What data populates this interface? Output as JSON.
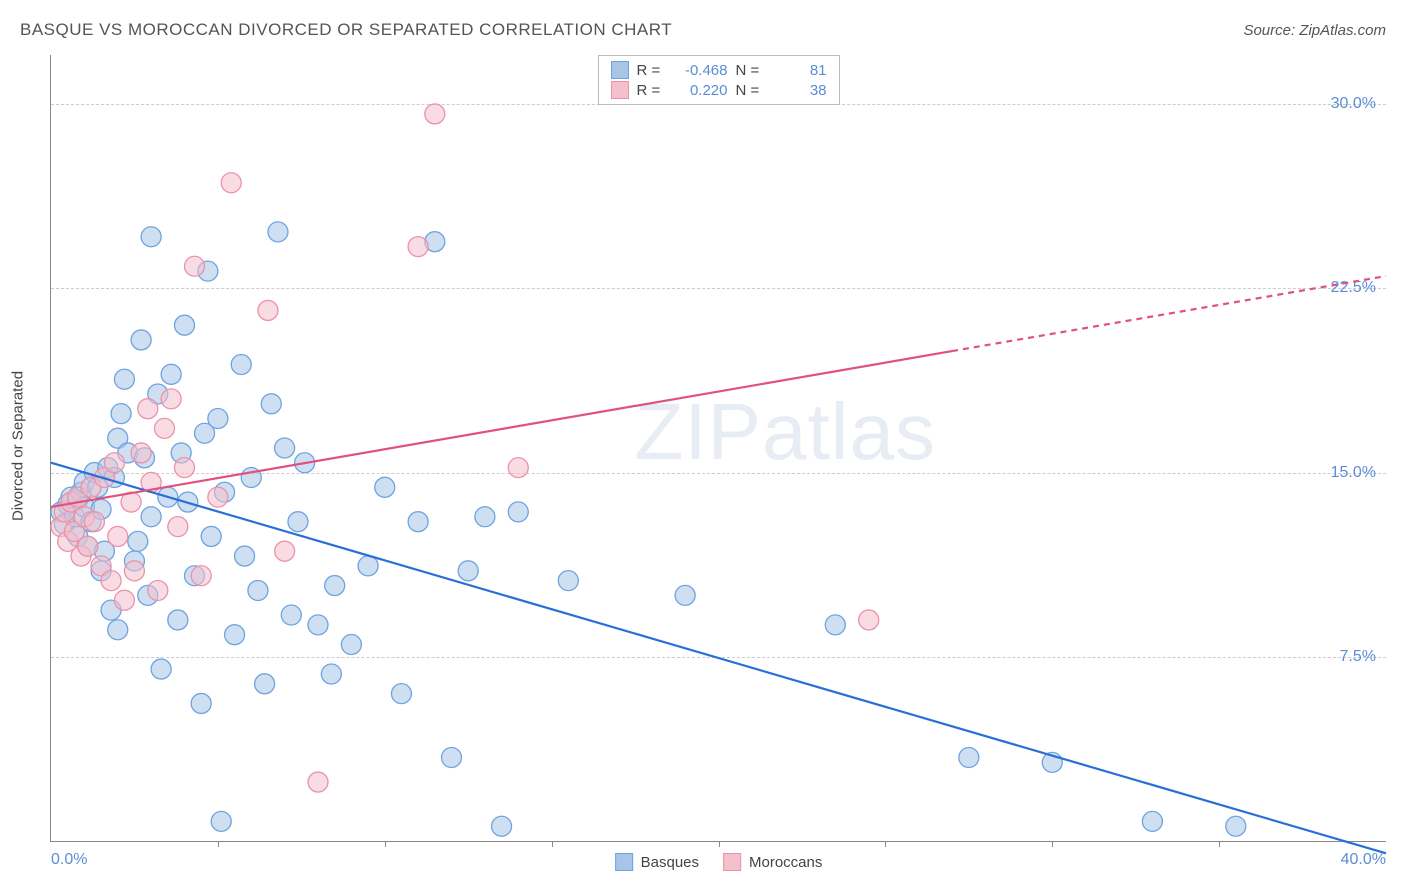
{
  "title": "BASQUE VS MOROCCAN DIVORCED OR SEPARATED CORRELATION CHART",
  "source_label": "Source: ZipAtlas.com",
  "ylabel": "Divorced or Separated",
  "watermark": {
    "part1": "ZIP",
    "part2": "atlas"
  },
  "chart": {
    "type": "scatter",
    "background_color": "#ffffff",
    "grid_color": "#cccccc",
    "axis_color": "#888888",
    "tick_label_color": "#5b8dd6",
    "xlim": [
      0,
      40
    ],
    "ylim": [
      0,
      32
    ],
    "xticks_major": [
      0,
      40
    ],
    "xticks_minor": [
      5,
      10,
      15,
      20,
      25,
      30,
      35
    ],
    "yticks": [
      7.5,
      15.0,
      22.5,
      30.0
    ],
    "xtick_labels": [
      "0.0%",
      "40.0%"
    ],
    "ytick_labels": [
      "7.5%",
      "15.0%",
      "22.5%",
      "30.0%"
    ],
    "marker_radius": 10,
    "marker_opacity": 0.55,
    "line_width": 2.2,
    "series": [
      {
        "name": "Basques",
        "color_fill": "#a8c5e8",
        "color_stroke": "#6da3e0",
        "line_color": "#2a6fd6",
        "R": "-0.468",
        "N": "81",
        "trend": {
          "x1": 0,
          "y1": 15.4,
          "x2": 40,
          "y2": -0.5,
          "solid_until_x": 40
        },
        "points": [
          [
            0.3,
            13.4
          ],
          [
            0.4,
            12.9
          ],
          [
            0.5,
            13.7
          ],
          [
            0.6,
            14.0
          ],
          [
            0.7,
            13.2
          ],
          [
            0.8,
            13.9
          ],
          [
            0.8,
            12.4
          ],
          [
            0.9,
            14.2
          ],
          [
            1.0,
            13.6
          ],
          [
            1.0,
            14.6
          ],
          [
            1.1,
            12.0
          ],
          [
            1.2,
            13.0
          ],
          [
            1.3,
            15.0
          ],
          [
            1.4,
            14.4
          ],
          [
            1.5,
            11.0
          ],
          [
            1.5,
            13.5
          ],
          [
            1.6,
            11.8
          ],
          [
            1.7,
            15.2
          ],
          [
            1.8,
            9.4
          ],
          [
            1.9,
            14.8
          ],
          [
            2.0,
            8.6
          ],
          [
            2.0,
            16.4
          ],
          [
            2.1,
            17.4
          ],
          [
            2.2,
            18.8
          ],
          [
            2.3,
            15.8
          ],
          [
            2.5,
            11.4
          ],
          [
            2.6,
            12.2
          ],
          [
            2.7,
            20.4
          ],
          [
            2.8,
            15.6
          ],
          [
            2.9,
            10.0
          ],
          [
            3.0,
            24.6
          ],
          [
            3.0,
            13.2
          ],
          [
            3.2,
            18.2
          ],
          [
            3.3,
            7.0
          ],
          [
            3.5,
            14.0
          ],
          [
            3.6,
            19.0
          ],
          [
            3.8,
            9.0
          ],
          [
            3.9,
            15.8
          ],
          [
            4.0,
            21.0
          ],
          [
            4.1,
            13.8
          ],
          [
            4.3,
            10.8
          ],
          [
            4.5,
            5.6
          ],
          [
            4.6,
            16.6
          ],
          [
            4.7,
            23.2
          ],
          [
            4.8,
            12.4
          ],
          [
            5.0,
            17.2
          ],
          [
            5.1,
            0.8
          ],
          [
            5.2,
            14.2
          ],
          [
            5.5,
            8.4
          ],
          [
            5.7,
            19.4
          ],
          [
            5.8,
            11.6
          ],
          [
            6.0,
            14.8
          ],
          [
            6.2,
            10.2
          ],
          [
            6.4,
            6.4
          ],
          [
            6.6,
            17.8
          ],
          [
            6.8,
            24.8
          ],
          [
            7.0,
            16.0
          ],
          [
            7.2,
            9.2
          ],
          [
            7.4,
            13.0
          ],
          [
            7.6,
            15.4
          ],
          [
            8.0,
            8.8
          ],
          [
            8.4,
            6.8
          ],
          [
            8.5,
            10.4
          ],
          [
            9.0,
            8.0
          ],
          [
            9.5,
            11.2
          ],
          [
            10.0,
            14.4
          ],
          [
            10.5,
            6.0
          ],
          [
            11.0,
            13.0
          ],
          [
            11.5,
            24.4
          ],
          [
            12.0,
            3.4
          ],
          [
            12.5,
            11.0
          ],
          [
            13.0,
            13.2
          ],
          [
            13.5,
            0.6
          ],
          [
            14.0,
            13.4
          ],
          [
            15.5,
            10.6
          ],
          [
            19.0,
            10.0
          ],
          [
            23.5,
            8.8
          ],
          [
            27.5,
            3.4
          ],
          [
            30.0,
            3.2
          ],
          [
            33.0,
            0.8
          ],
          [
            35.5,
            0.6
          ]
        ]
      },
      {
        "name": "Moroccans",
        "color_fill": "#f4c0cc",
        "color_stroke": "#eb92aa",
        "line_color": "#e0527e",
        "R": "0.220",
        "N": "38",
        "trend": {
          "x1": 0,
          "y1": 13.6,
          "x2": 40,
          "y2": 23.0,
          "solid_until_x": 27
        },
        "points": [
          [
            0.3,
            12.8
          ],
          [
            0.4,
            13.4
          ],
          [
            0.5,
            12.2
          ],
          [
            0.6,
            13.8
          ],
          [
            0.7,
            12.6
          ],
          [
            0.8,
            14.0
          ],
          [
            0.9,
            11.6
          ],
          [
            1.0,
            13.2
          ],
          [
            1.1,
            12.0
          ],
          [
            1.2,
            14.4
          ],
          [
            1.3,
            13.0
          ],
          [
            1.5,
            11.2
          ],
          [
            1.6,
            14.8
          ],
          [
            1.8,
            10.6
          ],
          [
            1.9,
            15.4
          ],
          [
            2.0,
            12.4
          ],
          [
            2.2,
            9.8
          ],
          [
            2.4,
            13.8
          ],
          [
            2.5,
            11.0
          ],
          [
            2.7,
            15.8
          ],
          [
            2.9,
            17.6
          ],
          [
            3.0,
            14.6
          ],
          [
            3.2,
            10.2
          ],
          [
            3.4,
            16.8
          ],
          [
            3.6,
            18.0
          ],
          [
            3.8,
            12.8
          ],
          [
            4.0,
            15.2
          ],
          [
            4.3,
            23.4
          ],
          [
            4.5,
            10.8
          ],
          [
            5.0,
            14.0
          ],
          [
            5.4,
            26.8
          ],
          [
            6.5,
            21.6
          ],
          [
            7.0,
            11.8
          ],
          [
            8.0,
            2.4
          ],
          [
            11.0,
            24.2
          ],
          [
            11.5,
            29.6
          ],
          [
            14.0,
            15.2
          ],
          [
            24.5,
            9.0
          ]
        ]
      }
    ]
  },
  "legend_top": {
    "r_label": "R =",
    "n_label": "N ="
  },
  "legend_bottom": [
    {
      "label": "Basques",
      "fill": "#a8c5e8",
      "stroke": "#6da3e0"
    },
    {
      "label": "Moroccans",
      "fill": "#f4c0cc",
      "stroke": "#eb92aa"
    }
  ]
}
